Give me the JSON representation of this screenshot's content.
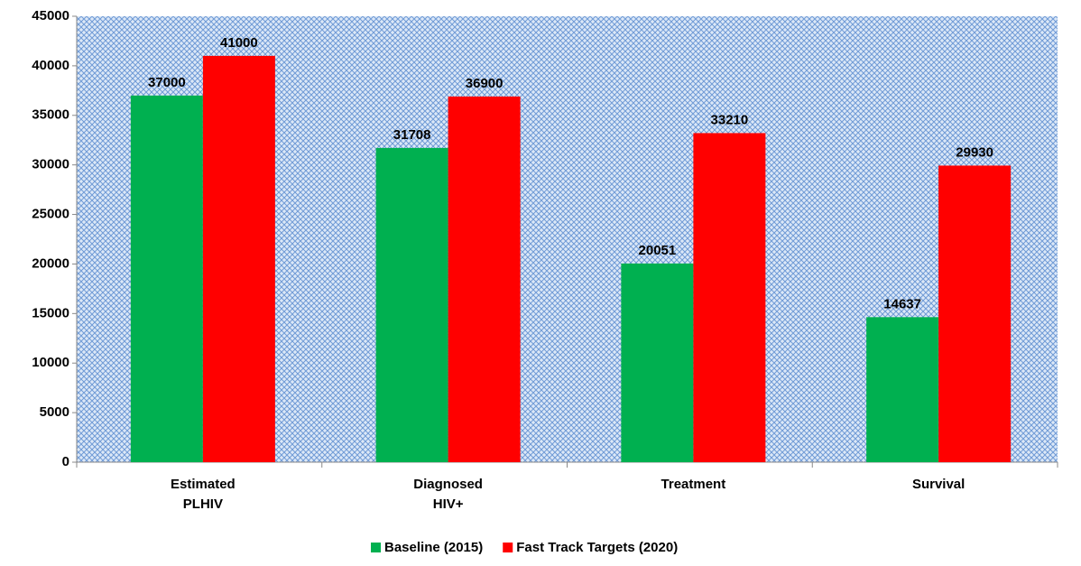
{
  "chart_data": {
    "type": "bar",
    "categories": [
      "Estimated PLHIV",
      "Diagnosed HIV+",
      "Treatment",
      "Survival"
    ],
    "series": [
      {
        "name": "Baseline (2015)",
        "color": "#00b050",
        "values": [
          37000,
          31708,
          20051,
          14637
        ]
      },
      {
        "name": "Fast Track Targets (2020)",
        "color": "#ff0000",
        "values": [
          41000,
          36900,
          33210,
          29930
        ]
      }
    ],
    "ylim": [
      0,
      45000
    ],
    "yticks": [
      0,
      5000,
      10000,
      15000,
      20000,
      25000,
      30000,
      35000,
      40000,
      45000
    ],
    "legend": "bottom"
  }
}
